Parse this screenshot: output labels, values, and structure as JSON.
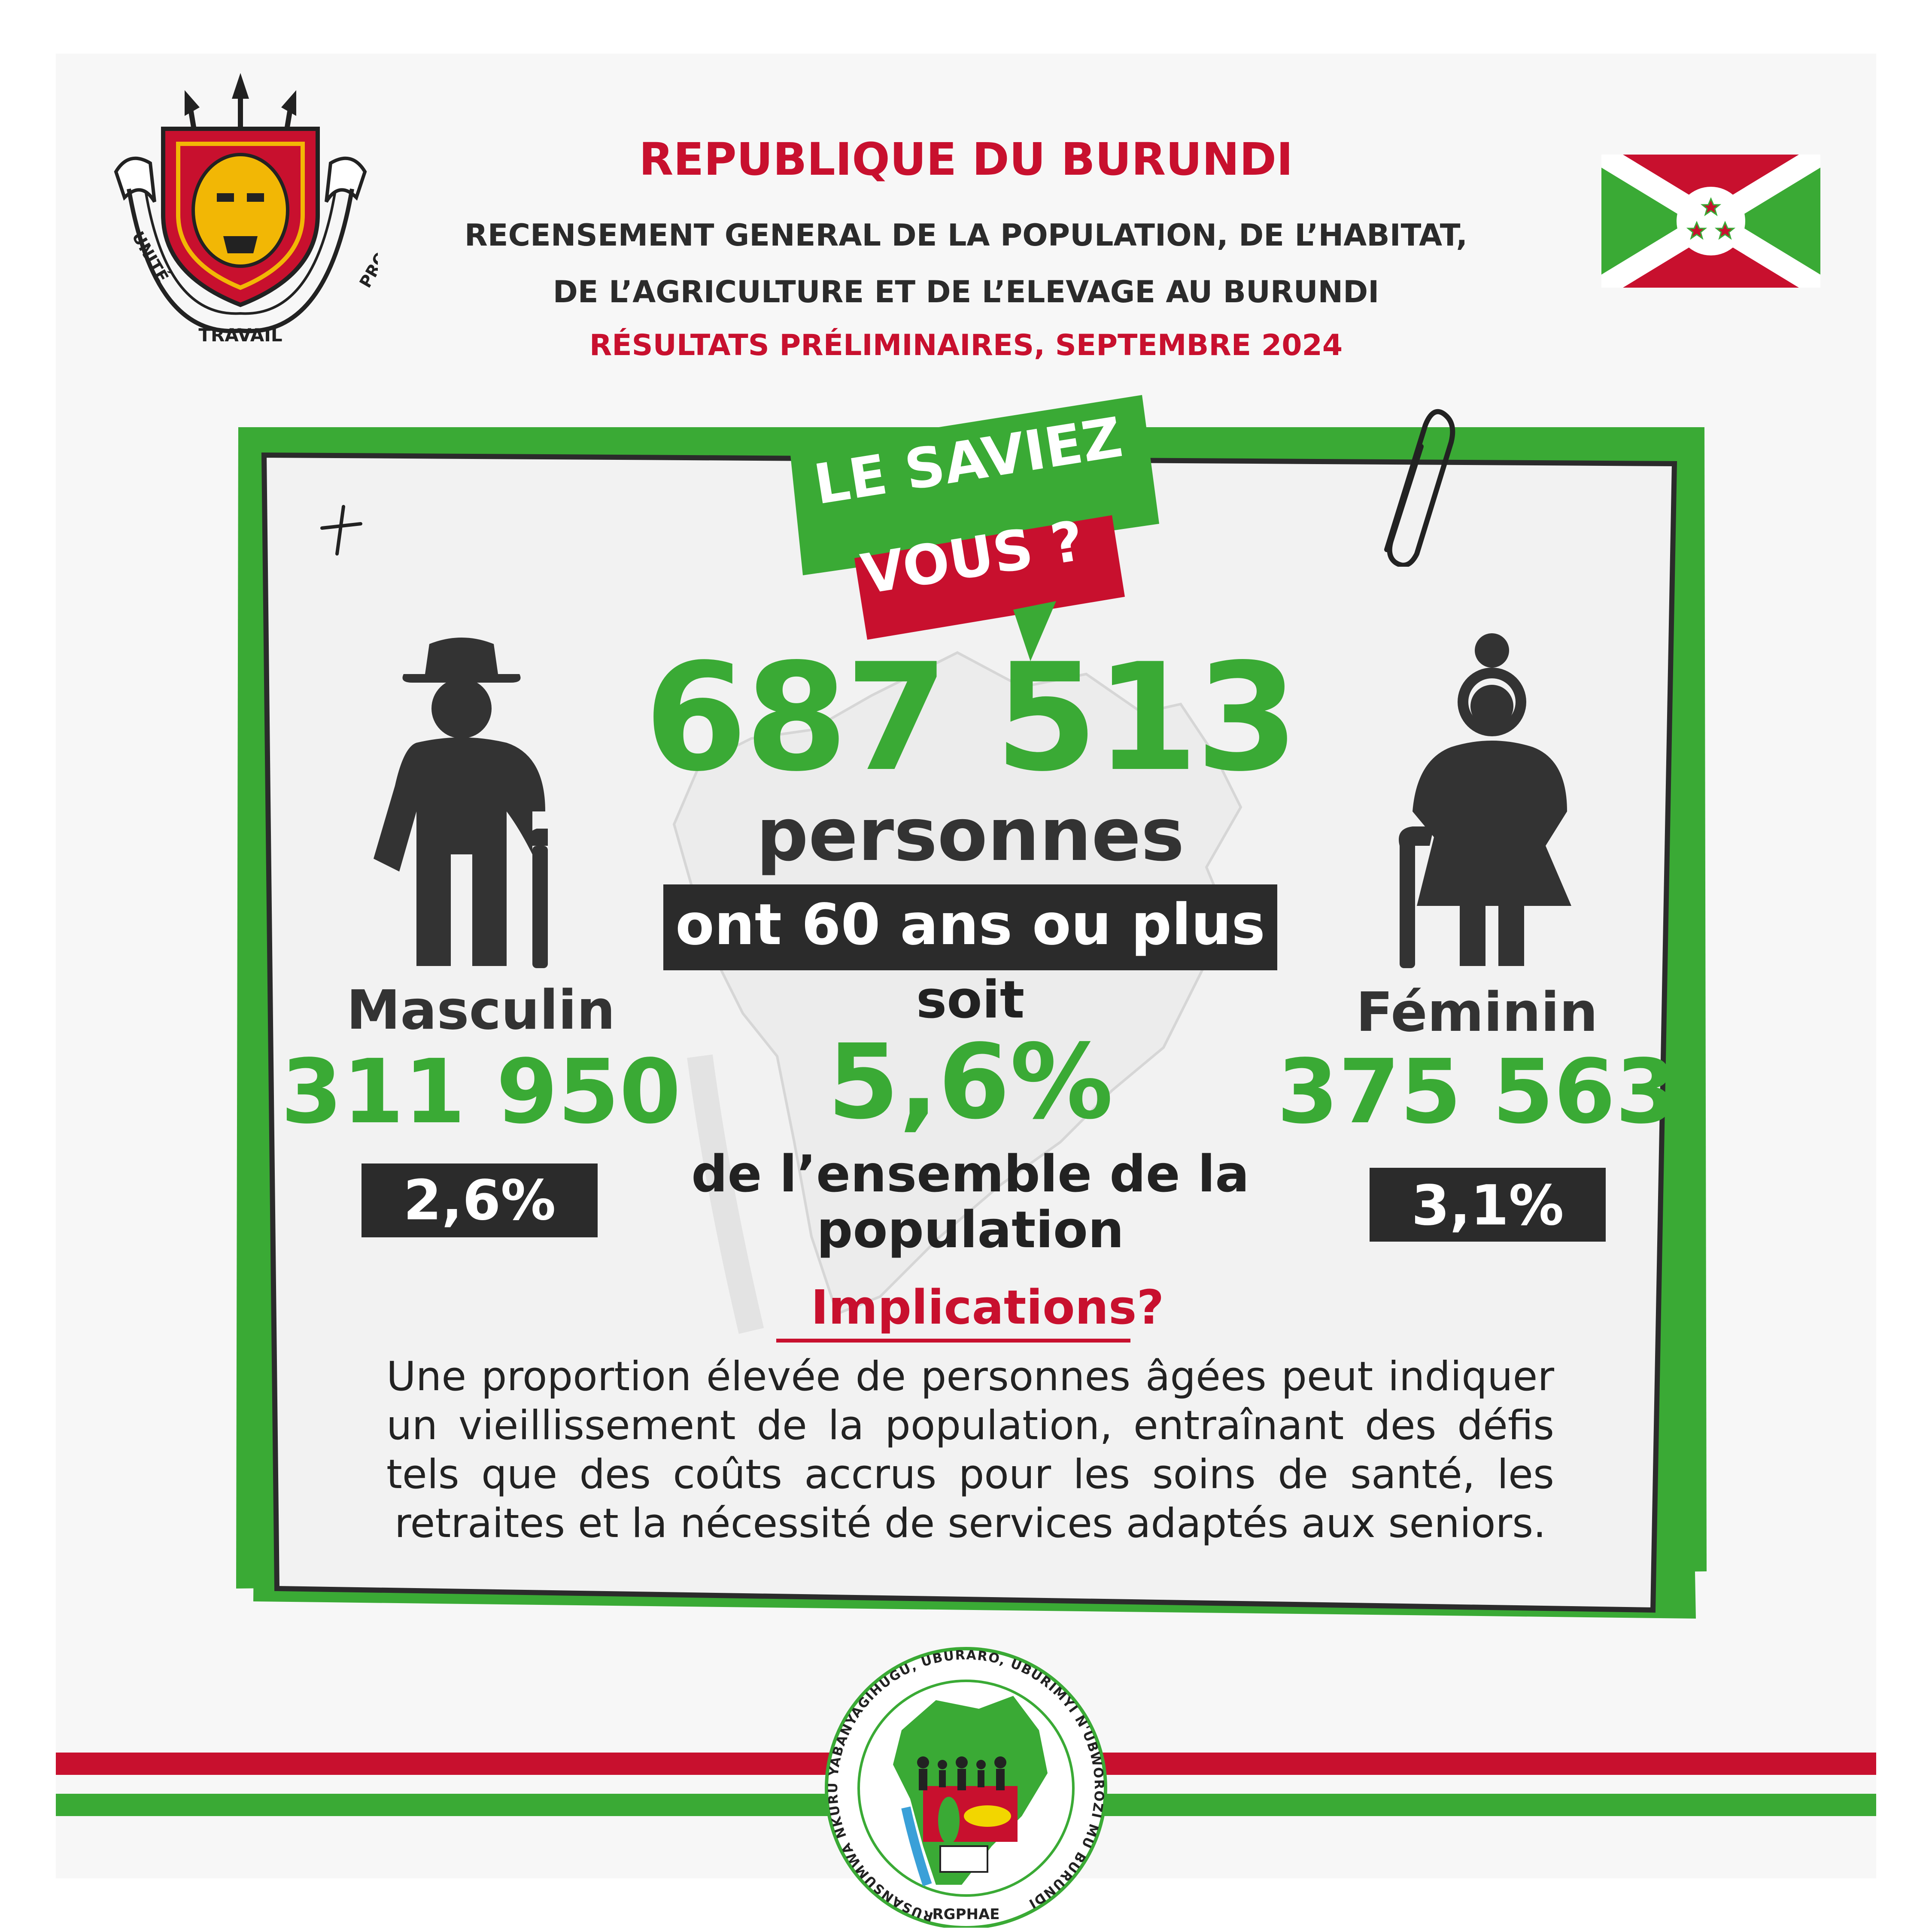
{
  "header": {
    "country": "REPUBLIQUE DU BURUNDI",
    "census_line1": "RECENSEMENT GENERAL DE LA POPULATION, DE L’HABITAT,",
    "census_line2": "DE L’AGRICULTURE ET DE L’ELEVAGE AU BURUNDI",
    "results": "RÉSULTATS PRÉLIMINAIRES, SEPTEMBRE 2024"
  },
  "coat_of_arms": {
    "motto_left": "UNITÉ",
    "motto_bottom": "TRAVAIL",
    "motto_right": "PROGRÈS"
  },
  "banner": {
    "line1": "LE SAVIEZ",
    "line2": "VOUS ?"
  },
  "headline": {
    "total": "687 513",
    "unit": "personnes",
    "condition": "ont 60 ans ou plus",
    "connector": "soit",
    "percent": "5,6%",
    "share_label": "de l’ensemble de la population"
  },
  "male": {
    "label": "Masculin",
    "count": "311 950",
    "percent": "2,6%"
  },
  "female": {
    "label": "Féminin",
    "count": "375 563",
    "percent": "3,1%"
  },
  "implications": {
    "title": "Implications?",
    "text": "Une proportion élevée de personnes âgées peut indiquer un vieillissement de la population, entraînant des défis tels que des coûts accrus pour les soins de santé, les retraites et la nécessité de services adaptés aux seniors."
  },
  "footer_logo": {
    "ring_text": "RUSANSUMWA NKURU YABANYAGIHUGU, UBURARO, UBURIMYI N'UBWOROZI MU BURUNDI",
    "acronym": "RGPHAE"
  },
  "colors": {
    "red": "#c8102e",
    "green": "#3aaa35",
    "dark": "#2b2b2b"
  }
}
